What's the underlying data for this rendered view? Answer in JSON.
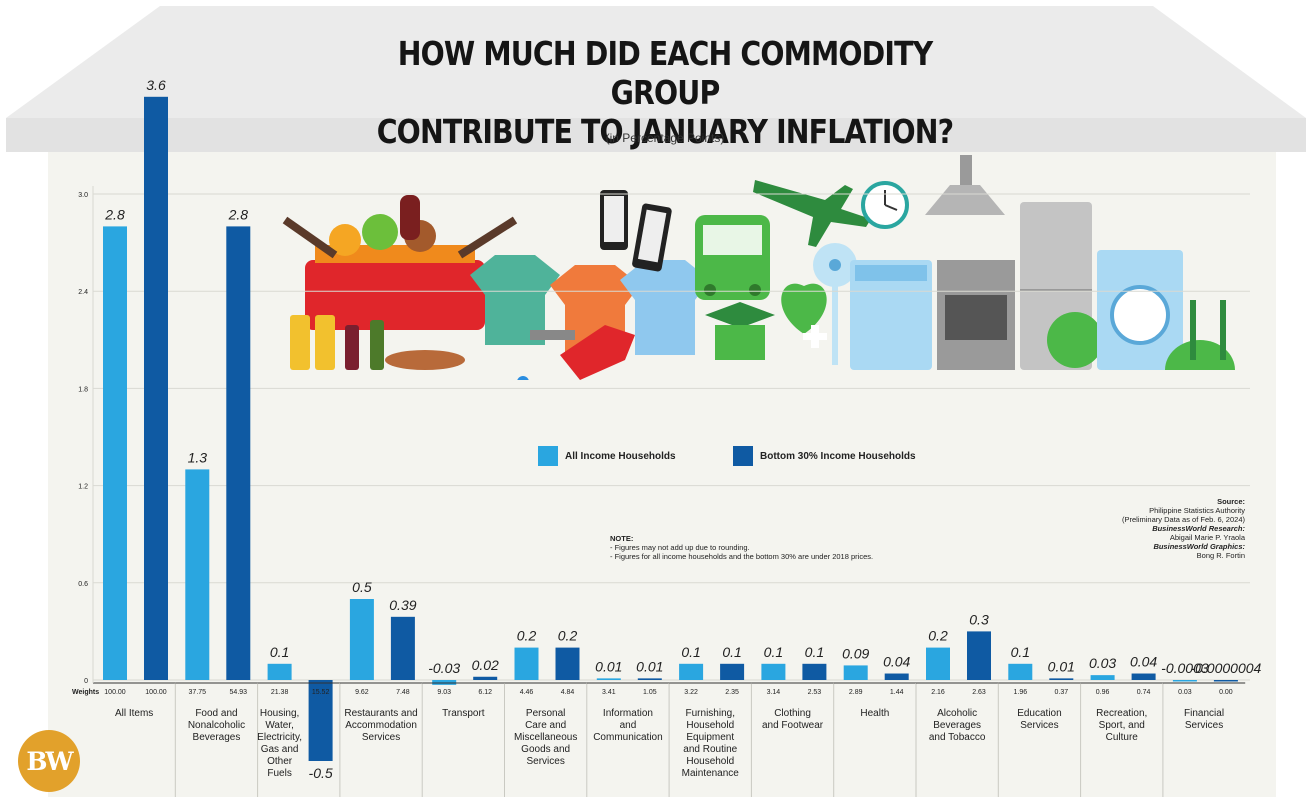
{
  "title_line1": "HOW MUCH DID EACH COMMODITY GROUP",
  "title_line2": "CONTRIBUTE TO JANUARY INFLATION?",
  "subtitle": "(in Percentage Points)",
  "legend": {
    "all": "All Income Households",
    "bottom": "Bottom 30% Income Households"
  },
  "weights_label": "Weights",
  "note": {
    "heading": "NOTE:",
    "line1": "- Figures may not add up due to rounding.",
    "line2": "- Figures for all income households and the bottom 30% are under 2018 prices."
  },
  "source": {
    "heading": "Source:",
    "line1": "Philippine Statistics Authority",
    "line2": "(Preliminary Data as of Feb. 6, 2024)",
    "research_head": "BusinessWorld Research:",
    "research_name": "Abigail Marie P. Yraola",
    "graphics_head": "BusinessWorld Graphics:",
    "graphics_name": "Bong R. Fortin"
  },
  "logo": "BW",
  "colors": {
    "all": "#2aa6e0",
    "bottom": "#0f5aa3",
    "wall": "#f4f4ef",
    "roof": "#ececec"
  },
  "chart_data": {
    "type": "bar",
    "ylim": [
      -0.5,
      3.6
    ],
    "yticks": [
      {
        "value": 0,
        "label": "0"
      },
      {
        "value": 0.6,
        "label": "0.6"
      },
      {
        "value": 1.2,
        "label": "1.2"
      },
      {
        "value": 1.8,
        "label": "1.8"
      },
      {
        "value": 2.4,
        "label": "2.4"
      },
      {
        "value": 3.0,
        "label": "3.0"
      }
    ],
    "categories": [
      "All Items",
      "Food and Nonalcoholic Beverages",
      "Housing, Water, Electricity, Gas and Other Fuels",
      "Restaurants and Accommodation Services",
      "Transport",
      "Personal Care and Miscellaneous Goods and Services",
      "Information and Communication",
      "Furnishing, Household Equipment and Routine Household Maintenance",
      "Clothing and Footwear",
      "Health",
      "Alcoholic Beverages and Tobacco",
      "Education Services",
      "Recreation, Sport, and Culture",
      "Financial Services"
    ],
    "category_lines": [
      [
        "All Items"
      ],
      [
        "Food and",
        "Nonalcoholic",
        "Beverages"
      ],
      [
        "Housing,",
        "Water,",
        "Electricity,",
        "Gas and",
        "Other",
        "Fuels"
      ],
      [
        "Restaurants and",
        "Accommodation",
        "Services"
      ],
      [
        "Transport"
      ],
      [
        "Personal",
        "Care and",
        "Miscellaneous",
        "Goods and",
        "Services"
      ],
      [
        "Information",
        "and",
        "Communication"
      ],
      [
        "Furnishing,",
        "Household",
        "Equipment",
        "and Routine",
        "Household",
        "Maintenance"
      ],
      [
        "Clothing",
        "and Footwear"
      ],
      [
        "Health"
      ],
      [
        "Alcoholic",
        "Beverages",
        "and Tobacco"
      ],
      [
        "Education",
        "Services"
      ],
      [
        "Recreation,",
        "Sport, and",
        "Culture"
      ],
      [
        "Financial",
        "Services"
      ]
    ],
    "series": [
      {
        "name": "All Income Households",
        "values": [
          2.8,
          1.3,
          0.1,
          0.5,
          -0.03,
          0.2,
          0.01,
          0.1,
          0.1,
          0.09,
          0.2,
          0.1,
          0.03,
          -0.0003
        ],
        "labels": [
          "2.8",
          "1.3",
          "0.1",
          "0.5",
          "-0.03",
          "0.2",
          "0.01",
          "0.1",
          "0.1",
          "0.09",
          "0.2",
          "0.1",
          "0.03",
          "-0.0003"
        ],
        "weights": [
          "100.00",
          "37.75",
          "21.38",
          "9.62",
          "9.03",
          "4.46",
          "3.41",
          "3.22",
          "3.14",
          "2.89",
          "2.16",
          "1.96",
          "0.96",
          "0.03"
        ]
      },
      {
        "name": "Bottom 30% Income Households",
        "values": [
          3.6,
          2.8,
          -0.5,
          0.39,
          0.02,
          0.2,
          0.01,
          0.1,
          0.1,
          0.04,
          0.3,
          0.01,
          0.04,
          -4e-07
        ],
        "labels": [
          "3.6",
          "2.8",
          "-0.5",
          "0.39",
          "0.02",
          "0.2",
          "0.01",
          "0.1",
          "0.1",
          "0.04",
          "0.3",
          "0.01",
          "0.04",
          "-0.0000004"
        ],
        "weights": [
          "100.00",
          "54.93",
          "15.52",
          "7.48",
          "6.12",
          "4.84",
          "1.05",
          "2.35",
          "2.53",
          "1.44",
          "2.63",
          "0.37",
          "0.74",
          "0.00"
        ]
      }
    ]
  }
}
